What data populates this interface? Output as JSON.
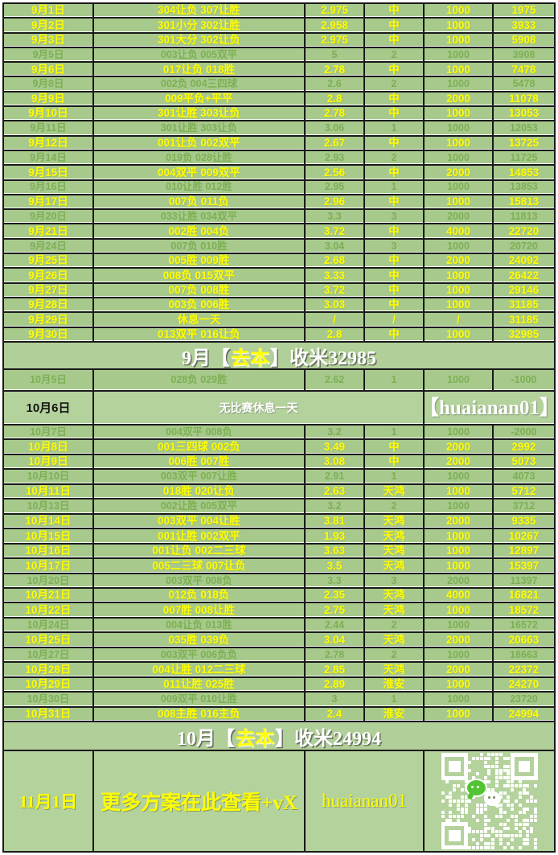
{
  "colors": {
    "row_bg": "#a7c98c",
    "row_bg_light": "#b4d29c",
    "hit_text": "#ffff00",
    "miss_text": "#7db053",
    "border": "#1a1a1a",
    "white_text": "#ffffff",
    "black_text": "#141414",
    "qr_module": "#ffffff",
    "wechat_green": "#52c332"
  },
  "september": {
    "rows": [
      {
        "date": "9月1日",
        "plan": "304让负 307让胜",
        "odds": "2.975",
        "result": "中",
        "stake": "1000",
        "profit": "1975",
        "hit": true
      },
      {
        "date": "9月2日",
        "plan": "301小分 302让胜",
        "odds": "2.958",
        "result": "中",
        "stake": "1000",
        "profit": "3933",
        "hit": true
      },
      {
        "date": "9月3日",
        "plan": "301大分 302让负",
        "odds": "2.975",
        "result": "中",
        "stake": "1000",
        "profit": "5908",
        "hit": true
      },
      {
        "date": "9月5日",
        "plan": "003让负 005双平",
        "odds": "5",
        "result": "2",
        "stake": "1000",
        "profit": "3908",
        "hit": false
      },
      {
        "date": "9月6日",
        "plan": "017让负 018胜",
        "odds": "2.78",
        "result": "中",
        "stake": "1000",
        "profit": "7478",
        "hit": true
      },
      {
        "date": "9月8日",
        "plan": "002负 004三四球",
        "odds": "2.6",
        "result": "2",
        "stake": "1000",
        "profit": "5478",
        "hit": false
      },
      {
        "date": "9月9日",
        "plan": "009平负+平平",
        "odds": "2.8",
        "result": "中",
        "stake": "2000",
        "profit": "11078",
        "hit": true
      },
      {
        "date": "9月10日",
        "plan": "301让胜 303让负",
        "odds": "2.78",
        "result": "中",
        "stake": "1000",
        "profit": "13053",
        "hit": true
      },
      {
        "date": "9月11日",
        "plan": "301让胜 303让负",
        "odds": "3.06",
        "result": "1",
        "stake": "1000",
        "profit": "12053",
        "hit": false
      },
      {
        "date": "9月12日",
        "plan": "001让负 002双平",
        "odds": "2.67",
        "result": "中",
        "stake": "1000",
        "profit": "13725",
        "hit": true
      },
      {
        "date": "9月14日",
        "plan": "019负 028让胜",
        "odds": "2.93",
        "result": "2",
        "stake": "1000",
        "profit": "11725",
        "hit": false
      },
      {
        "date": "9月15日",
        "plan": "004双平 009双平",
        "odds": "2.56",
        "result": "中",
        "stake": "2000",
        "profit": "14853",
        "hit": true
      },
      {
        "date": "9月16日",
        "plan": "010让胜 012胜",
        "odds": "2.95",
        "result": "1",
        "stake": "1000",
        "profit": "13853",
        "hit": false
      },
      {
        "date": "9月17日",
        "plan": "007负 011负",
        "odds": "2.96",
        "result": "中",
        "stake": "1000",
        "profit": "15813",
        "hit": true
      },
      {
        "date": "9月20日",
        "plan": "033让胜 034双平",
        "odds": "3.3",
        "result": "3",
        "stake": "2000",
        "profit": "11813",
        "hit": false
      },
      {
        "date": "9月21日",
        "plan": "002胜 004负",
        "odds": "3.72",
        "result": "中",
        "stake": "4000",
        "profit": "22720",
        "hit": true
      },
      {
        "date": "9月24日",
        "plan": "007负 010胜",
        "odds": "3.04",
        "result": "3",
        "stake": "1000",
        "profit": "20720",
        "hit": false
      },
      {
        "date": "9月25日",
        "plan": "005胜 009胜",
        "odds": "2.68",
        "result": "中",
        "stake": "2000",
        "profit": "24092",
        "hit": true
      },
      {
        "date": "9月26日",
        "plan": "008负 015双平",
        "odds": "3.33",
        "result": "中",
        "stake": "1000",
        "profit": "26422",
        "hit": true
      },
      {
        "date": "9月27日",
        "plan": "007负 008胜",
        "odds": "3.72",
        "result": "中",
        "stake": "1000",
        "profit": "29146",
        "hit": true
      },
      {
        "date": "9月28日",
        "plan": "003负 006胜",
        "odds": "3.03",
        "result": "中",
        "stake": "1000",
        "profit": "31185",
        "hit": true
      },
      {
        "date": "9月29日",
        "plan": "休息一天",
        "odds": "/",
        "result": "/",
        "stake": "/",
        "profit": "31185",
        "hit": true
      },
      {
        "date": "9月30日",
        "plan": "013双平 016让负",
        "odds": "2.8",
        "result": "中",
        "stake": "1000",
        "profit": "32985",
        "hit": true
      }
    ],
    "summary": {
      "pre": "9月【",
      "tag": "去本",
      "post": "】收米32985"
    }
  },
  "october": {
    "rows": [
      {
        "date": "10月5日",
        "plan": "028负 029胜",
        "odds": "2.62",
        "result": "1",
        "stake": "1000",
        "profit": "-1000",
        "hit": false
      },
      {
        "type": "notice",
        "date": "10月6日",
        "notice": "无比赛休息一天",
        "handle": "【huaianan01】"
      },
      {
        "date": "10月7日",
        "plan": "004双平 008负",
        "odds": "3.2",
        "result": "1",
        "stake": "1000",
        "profit": "-2000",
        "hit": false
      },
      {
        "date": "10月8日",
        "plan": "001三四球 002负",
        "odds": "3.49",
        "result": "中",
        "stake": "2000",
        "profit": "2992",
        "hit": true
      },
      {
        "date": "10月9日",
        "plan": "006胜 007胜",
        "odds": "3.08",
        "result": "中",
        "stake": "2000",
        "profit": "5073",
        "hit": true
      },
      {
        "date": "10月10日",
        "plan": "003双平 007让胜",
        "odds": "2.91",
        "result": "1",
        "stake": "1000",
        "profit": "4073",
        "hit": false
      },
      {
        "date": "10月11日",
        "plan": "018胜 020让负",
        "odds": "2.63",
        "result": "天鸿",
        "stake": "1000",
        "profit": "5712",
        "hit": true
      },
      {
        "date": "10月13日",
        "plan": "002让胜 005双平",
        "odds": "3.2",
        "result": "2",
        "stake": "1000",
        "profit": "3712",
        "hit": false
      },
      {
        "date": "10月14日",
        "plan": "003双平 004让胜",
        "odds": "3.81",
        "result": "天鸿",
        "stake": "2000",
        "profit": "9335",
        "hit": true
      },
      {
        "date": "10月15日",
        "plan": "001让胜 002双平",
        "odds": "1.93",
        "result": "天鸿",
        "stake": "1000",
        "profit": "10267",
        "hit": true
      },
      {
        "date": "10月16日",
        "plan": "001让负 002二三球",
        "odds": "3.63",
        "result": "天鸿",
        "stake": "1000",
        "profit": "12897",
        "hit": true
      },
      {
        "date": "10月17日",
        "plan": "005二三球 007让负",
        "odds": "3.5",
        "result": "天鸿",
        "stake": "1000",
        "profit": "15397",
        "hit": true
      },
      {
        "date": "10月20日",
        "plan": "003双平 008负",
        "odds": "3.3",
        "result": "3",
        "stake": "2000",
        "profit": "11397",
        "hit": false
      },
      {
        "date": "10月21日",
        "plan": "012负 018负",
        "odds": "2.35",
        "result": "天鸿",
        "stake": "4000",
        "profit": "16821",
        "hit": true
      },
      {
        "date": "10月22日",
        "plan": "007胜 008让胜",
        "odds": "2.75",
        "result": "天鸿",
        "stake": "1000",
        "profit": "18572",
        "hit": true
      },
      {
        "date": "10月24日",
        "plan": "004让负 013胜",
        "odds": "2.44",
        "result": "2",
        "stake": "1000",
        "profit": "16572",
        "hit": false
      },
      {
        "date": "10月25日",
        "plan": "035胜 039负",
        "odds": "3.04",
        "result": "天鸿",
        "stake": "2000",
        "profit": "20663",
        "hit": true
      },
      {
        "date": "10月27日",
        "plan": "003双平 006负负",
        "odds": "2.78",
        "result": "2",
        "stake": "1000",
        "profit": "18663",
        "hit": false
      },
      {
        "date": "10月28日",
        "plan": "004让胜 012二三球",
        "odds": "2.85",
        "result": "天鸿",
        "stake": "2000",
        "profit": "22372",
        "hit": true
      },
      {
        "date": "10月29日",
        "plan": "011让胜 025胜",
        "odds": "2.89",
        "result": "淮安",
        "stake": "1000",
        "profit": "24270",
        "hit": true
      },
      {
        "date": "10月30日",
        "plan": "009双平 010让胜",
        "odds": "3",
        "result": "1",
        "stake": "1000",
        "profit": "23720",
        "hit": false
      },
      {
        "date": "10月31日",
        "plan": "008主胜 016主负",
        "odds": "2.4",
        "result": "淮安",
        "stake": "1000",
        "profit": "24994",
        "hit": true
      }
    ],
    "summary": {
      "pre": "10月【",
      "tag": "去本",
      "post": "】收米24994"
    }
  },
  "footer": {
    "date": "11月1日",
    "promo": "更多方案在此查看+vX",
    "handle": "huaianan01",
    "qr_icon": "wechat-icon"
  }
}
